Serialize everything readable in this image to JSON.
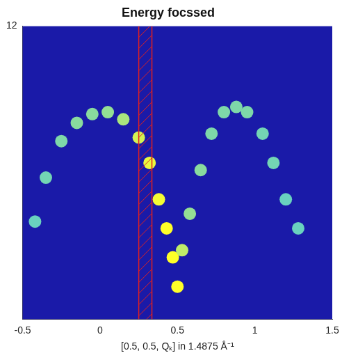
{
  "chart_data": {
    "type": "scatter",
    "title": "Energy focssed",
    "x_label": "[0.5, 0.5, Qₖ] in 1.4875 Å⁻¹",
    "x": [
      -0.42,
      -0.35,
      -0.25,
      -0.15,
      -0.05,
      0.05,
      0.15,
      0.25,
      0.32,
      0.38,
      0.43,
      0.47,
      0.5,
      0.53,
      0.58,
      0.65,
      0.72,
      0.8,
      0.88,
      0.95,
      1.05,
      1.12,
      1.2,
      1.28
    ],
    "values": [
      6.0,
      7.35,
      8.47,
      9.03,
      9.3,
      9.36,
      9.14,
      8.58,
      7.8,
      6.68,
      5.79,
      4.9,
      4.0,
      5.12,
      6.24,
      7.58,
      8.7,
      9.36,
      9.52,
      9.36,
      8.7,
      7.8,
      6.68,
      5.79
    ],
    "intensity": [
      0.3,
      0.35,
      0.4,
      0.45,
      0.45,
      0.5,
      0.6,
      0.8,
      0.9,
      0.95,
      1.0,
      1.0,
      1.0,
      0.7,
      0.5,
      0.45,
      0.4,
      0.4,
      0.4,
      0.4,
      0.35,
      0.35,
      0.3,
      0.3
    ],
    "shaded_band": {
      "x": [
        0.25,
        0.335
      ],
      "color": "#e02020"
    },
    "xlim": [
      -0.5,
      1.5
    ],
    "xticks": [
      -0.5,
      0,
      0.5,
      1,
      1.5
    ],
    "ylim": [
      3,
      12
    ],
    "yticks": [
      12
    ],
    "grid": false,
    "marker": "circle",
    "color": "#1a1aa8"
  }
}
